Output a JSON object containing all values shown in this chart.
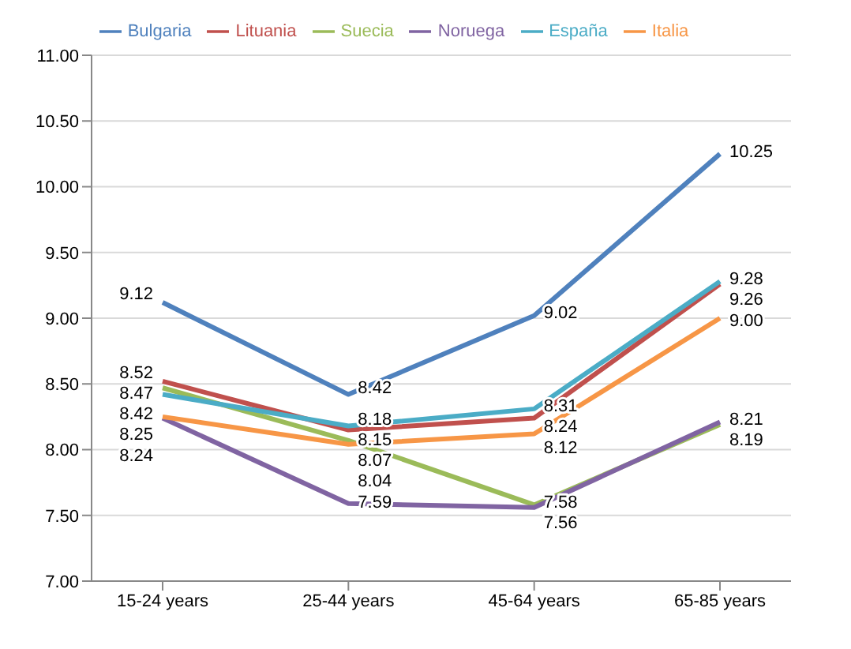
{
  "chart_data": {
    "type": "line",
    "categories": [
      "15-24 years",
      "25-44 years",
      "45-64 years",
      "65-85 years"
    ],
    "series": [
      {
        "name": "Bulgaria",
        "color": "#4f81bd",
        "values": [
          9.12,
          8.42,
          9.02,
          10.25
        ],
        "value_labels": [
          "9.12",
          "8.42",
          "9.02",
          "10.25"
        ]
      },
      {
        "name": "Lituania",
        "color": "#c0504d",
        "values": [
          8.52,
          8.15,
          8.24,
          9.26
        ],
        "value_labels": [
          "8.52",
          "8.15",
          "8.24",
          "9.26"
        ]
      },
      {
        "name": "Suecia",
        "color": "#9bbb59",
        "values": [
          8.47,
          8.07,
          7.58,
          8.19
        ],
        "value_labels": [
          "8.47",
          "8.07",
          "7.58",
          "8.19"
        ]
      },
      {
        "name": "Noruega",
        "color": "#8064a2",
        "values": [
          8.24,
          7.59,
          7.56,
          8.21
        ],
        "value_labels": [
          "8.24",
          "7.59",
          "7.56",
          "8.21"
        ]
      },
      {
        "name": "España",
        "color": "#4bacc6",
        "values": [
          8.42,
          8.18,
          8.31,
          9.28
        ],
        "value_labels": [
          "8.42",
          "8.18",
          "8.31",
          "9.28"
        ]
      },
      {
        "name": "Italia",
        "color": "#f79646",
        "values": [
          8.25,
          8.04,
          8.12,
          9.0
        ],
        "value_labels": [
          "8.25",
          "8.04",
          "8.12",
          "9.00"
        ]
      }
    ],
    "ylim": [
      7,
      11
    ],
    "yticks": [
      {
        "value": 7,
        "label": "7.00"
      },
      {
        "value": 7.5,
        "label": "7.50"
      },
      {
        "value": 8,
        "label": "8.00"
      },
      {
        "value": 8.5,
        "label": "8.50"
      },
      {
        "value": 9,
        "label": "9.00"
      },
      {
        "value": 9.5,
        "label": "9.50"
      },
      {
        "value": 10,
        "label": "10.00"
      },
      {
        "value": 10.5,
        "label": "10.50"
      },
      {
        "value": 11,
        "label": "11.00"
      }
    ],
    "grid": "y",
    "legend": "top",
    "marker": "none",
    "line_style": "solid"
  }
}
